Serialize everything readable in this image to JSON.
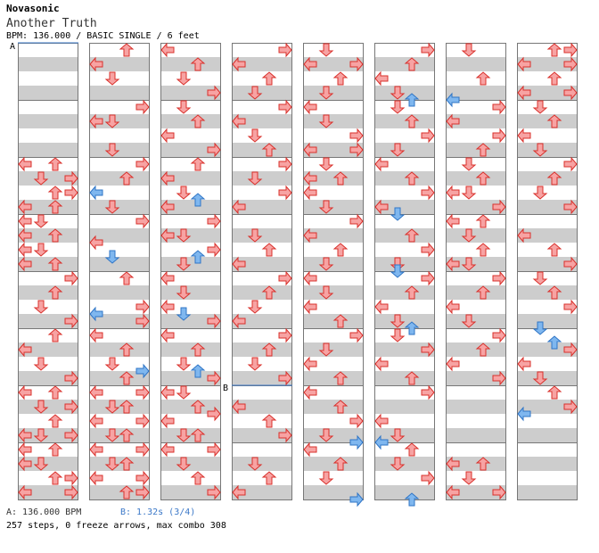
{
  "header": {
    "artist": "Novasonic",
    "song": "Another Truth",
    "meta": "BPM: 136.000 / BASIC SINGLE / 6 feet"
  },
  "markers": {
    "a": "A",
    "b": "B"
  },
  "footer": {
    "bpm_a": "A: 136.000 BPM",
    "bpm_b": "B: 1.32s (3/4)",
    "summary": "257 steps, 0 freeze arrows, max combo 308"
  },
  "colors": {
    "stripe": "#cdcdcd",
    "border": "#777777",
    "note_red": "#f7a3a3",
    "note_red_stroke": "#d9302b",
    "note_blue": "#7fb7ef",
    "note_blue_stroke": "#2f75c6",
    "marker_line": "#3b78c8"
  }
}
